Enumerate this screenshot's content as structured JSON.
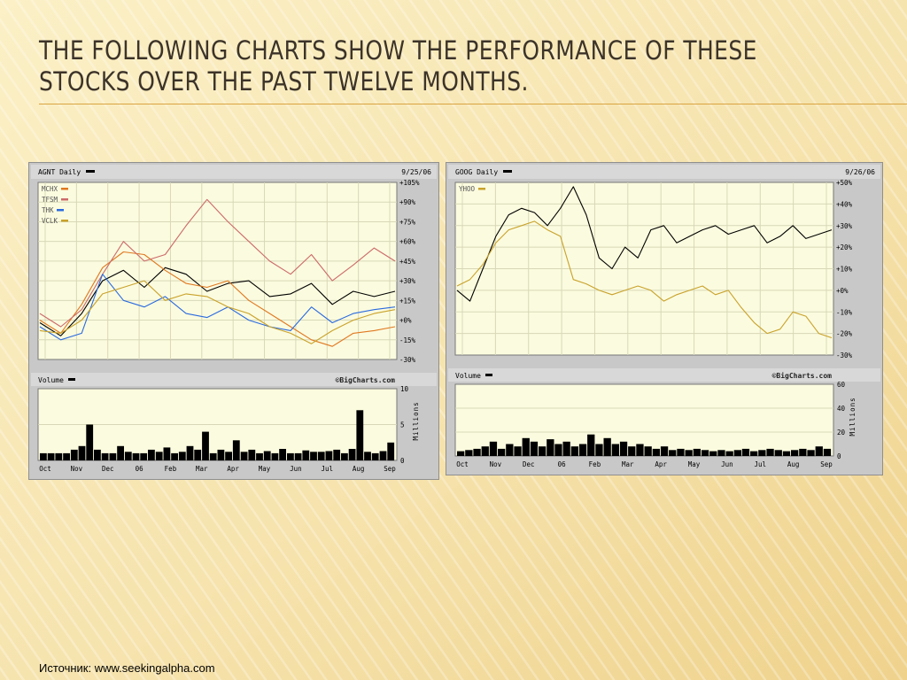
{
  "slide": {
    "title": "The following charts show the performance of these stocks over the past twelve months.",
    "source": "Источник: www.seekingalpha.com"
  },
  "chart_data": [
    {
      "type": "line",
      "header": "AGNT Daily",
      "date": "9/25/06",
      "watermark": "©BigCharts.com",
      "volume_label": "Volume",
      "volume_unit": "Millions",
      "x_ticks": [
        "Oct",
        "Nov",
        "Dec",
        "06",
        "Feb",
        "Mar",
        "Apr",
        "May",
        "Jun",
        "Jul",
        "Aug",
        "Sep"
      ],
      "y_ticks": [
        "+105%",
        "+90%",
        "+75%",
        "+60%",
        "+45%",
        "+30%",
        "+15%",
        "+0%",
        "-15%",
        "-30%"
      ],
      "ylim": [
        -30,
        105
      ],
      "volume_ticks": [
        "10",
        "5",
        "0"
      ],
      "volume_ylim": [
        0,
        10
      ],
      "colors": {
        "main": "#000000",
        "MCHX": "#e07820",
        "TFSM": "#cc6a6a",
        "THK": "#2a6adf",
        "VCLK": "#c9a22a"
      },
      "series": [
        {
          "name": "AGNT",
          "color": "#000000",
          "values": [
            -2,
            -12,
            5,
            30,
            38,
            25,
            40,
            35,
            22,
            28,
            30,
            18,
            20,
            28,
            12,
            22,
            18,
            22
          ]
        },
        {
          "name": "MCHX",
          "color": "#e07820",
          "values": [
            0,
            -10,
            12,
            40,
            52,
            50,
            38,
            28,
            25,
            30,
            15,
            5,
            -5,
            -15,
            -20,
            -10,
            -8,
            -5
          ]
        },
        {
          "name": "TFSM",
          "color": "#cc6a6a",
          "values": [
            5,
            -5,
            8,
            35,
            60,
            45,
            50,
            72,
            92,
            75,
            60,
            45,
            35,
            50,
            30,
            42,
            55,
            45
          ]
        },
        {
          "name": "THK",
          "color": "#2a6adf",
          "values": [
            -5,
            -15,
            -10,
            35,
            15,
            10,
            18,
            5,
            2,
            10,
            0,
            -5,
            -8,
            10,
            -2,
            5,
            8,
            10
          ]
        },
        {
          "name": "VCLK",
          "color": "#c9a22a",
          "values": [
            -8,
            -10,
            0,
            20,
            25,
            30,
            15,
            20,
            18,
            10,
            5,
            -5,
            -10,
            -18,
            -8,
            0,
            5,
            8
          ]
        }
      ],
      "volume": [
        1,
        1,
        1,
        1,
        1.5,
        2,
        5,
        1.5,
        1,
        1,
        2,
        1.2,
        1,
        1,
        1.5,
        1.2,
        1.8,
        1,
        1.2,
        2,
        1.5,
        4,
        1,
        1.5,
        1.2,
        2.8,
        1.2,
        1.5,
        1,
        1.3,
        1,
        1.6,
        1,
        1,
        1.4,
        1.2,
        1.2,
        1.3,
        1.5,
        1,
        1.6,
        7,
        1.2,
        1,
        1.3,
        2.5
      ]
    },
    {
      "type": "line",
      "header": "GOOG Daily",
      "date": "9/26/06",
      "watermark": "©BigCharts.com",
      "volume_label": "Volume",
      "volume_unit": "Millions",
      "x_ticks": [
        "Oct",
        "Nov",
        "Dec",
        "06",
        "Feb",
        "Mar",
        "Apr",
        "May",
        "Jun",
        "Jul",
        "Aug",
        "Sep"
      ],
      "y_ticks": [
        "+50%",
        "+40%",
        "+30%",
        "+20%",
        "+10%",
        "+0%",
        "-10%",
        "-20%",
        "-30%"
      ],
      "ylim": [
        -30,
        50
      ],
      "volume_ticks": [
        "60",
        "40",
        "20",
        "0"
      ],
      "volume_ylim": [
        0,
        60
      ],
      "colors": {
        "main": "#000000",
        "YHOO": "#c9a22a"
      },
      "series": [
        {
          "name": "GOOG",
          "color": "#000000",
          "values": [
            0,
            -5,
            10,
            25,
            35,
            38,
            36,
            30,
            38,
            48,
            35,
            15,
            10,
            20,
            15,
            28,
            30,
            22,
            25,
            28,
            30,
            26,
            28,
            30,
            22,
            25,
            30,
            24,
            26,
            28
          ]
        },
        {
          "name": "YHOO",
          "color": "#c9a22a",
          "values": [
            2,
            5,
            12,
            22,
            28,
            30,
            32,
            28,
            25,
            5,
            3,
            0,
            -2,
            0,
            2,
            0,
            -5,
            -2,
            0,
            2,
            -2,
            0,
            -8,
            -15,
            -20,
            -18,
            -10,
            -12,
            -20,
            -22
          ]
        }
      ],
      "volume": [
        4,
        5,
        6,
        8,
        12,
        6,
        10,
        8,
        15,
        12,
        8,
        14,
        10,
        12,
        8,
        10,
        18,
        10,
        15,
        10,
        12,
        8,
        10,
        8,
        6,
        8,
        5,
        6,
        5,
        6,
        5,
        4,
        5,
        4,
        5,
        6,
        4,
        5,
        6,
        5,
        4,
        5,
        6,
        5,
        8,
        6
      ]
    }
  ]
}
